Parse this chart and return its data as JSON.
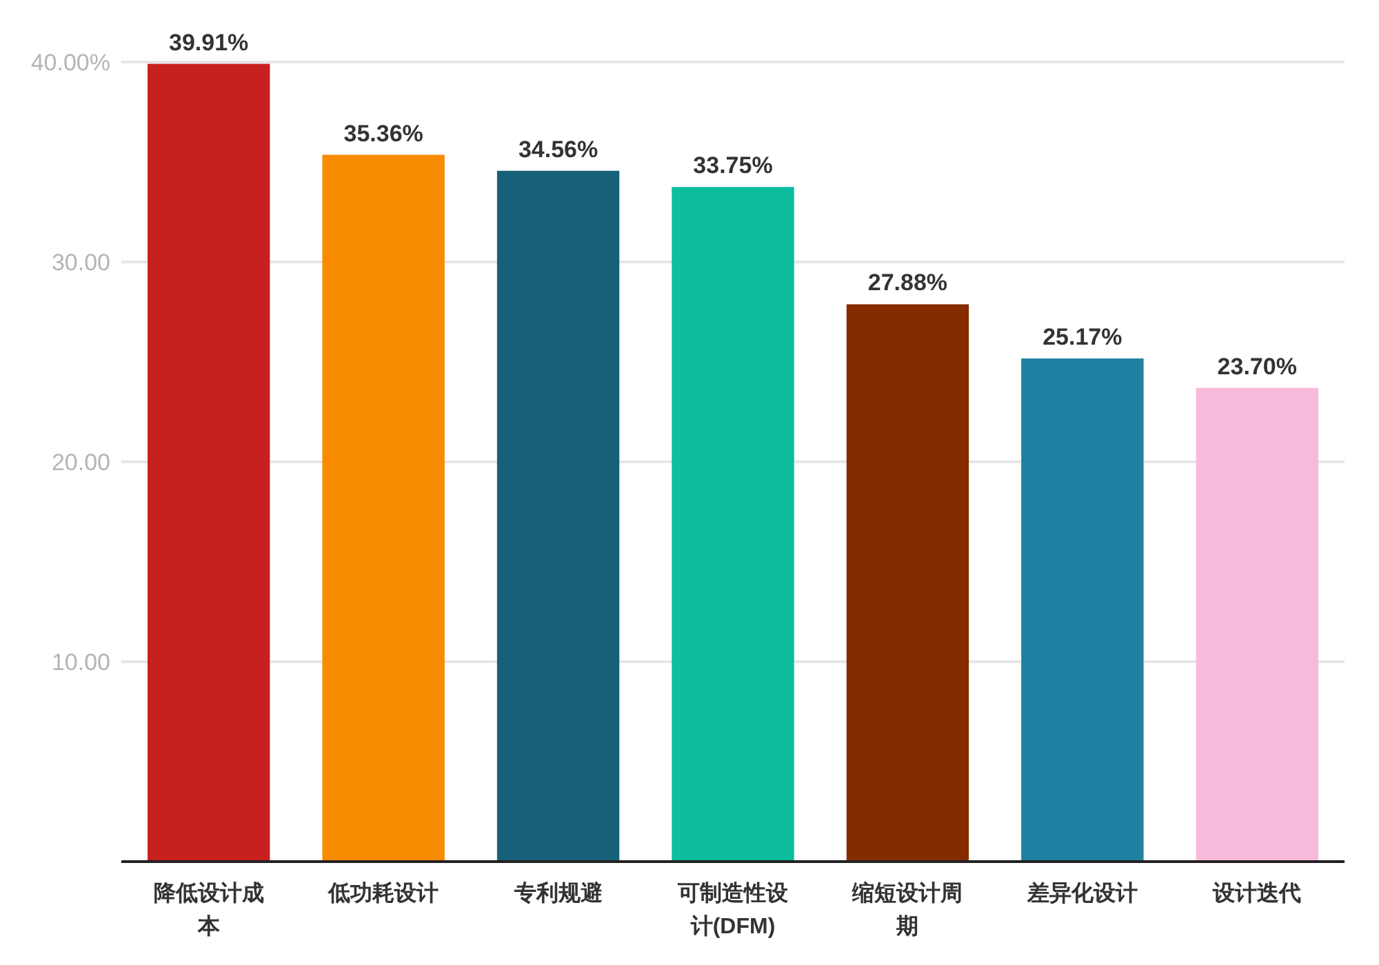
{
  "chart_data": {
    "type": "bar",
    "categories": [
      "降低设计成本",
      "低功耗设计",
      "专利规避",
      "可制造性设计(DFM)",
      "缩短设计周期",
      "差异化设计",
      "设计迭代"
    ],
    "values": [
      39.91,
      35.36,
      34.56,
      33.75,
      27.88,
      25.17,
      23.7
    ],
    "colors": [
      "#c81f1f",
      "#f88b00",
      "#176079",
      "#0cbd9e",
      "#852b00",
      "#1f80a1",
      "#f8badb"
    ],
    "value_labels": [
      "39.91%",
      "35.36%",
      "34.56%",
      "33.75%",
      "27.88%",
      "25.17%",
      "23.70%"
    ],
    "ylim": [
      0,
      40
    ],
    "yticks": [
      {
        "value": 10,
        "label": "10.00"
      },
      {
        "value": 20,
        "label": "20.00"
      },
      {
        "value": 30,
        "label": "30.00"
      },
      {
        "value": 40,
        "label": "40.00%"
      }
    ],
    "grid": "y"
  }
}
